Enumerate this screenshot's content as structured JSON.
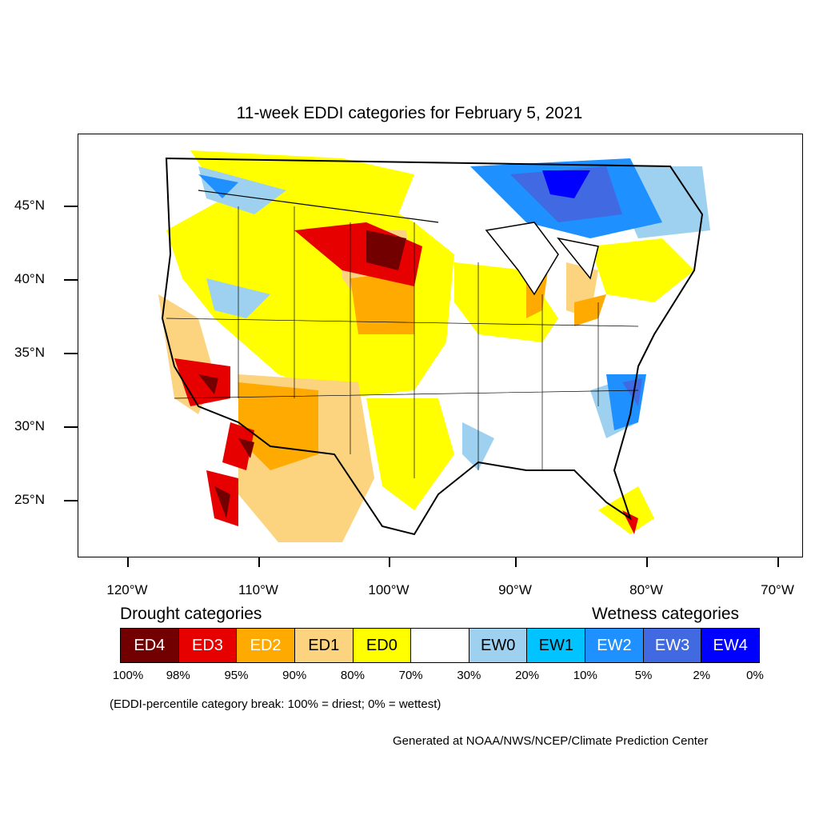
{
  "title": "11-week EDDI categories for February 5, 2021",
  "lat_labels": [
    "45°N",
    "40°N",
    "35°N",
    "30°N",
    "25°N"
  ],
  "lon_labels": [
    "120°W",
    "110°W",
    "100°W",
    "90°W",
    "80°W",
    "70°W"
  ],
  "legend": {
    "drought_heading": "Drought categories",
    "wetness_heading": "Wetness categories",
    "categories": [
      {
        "label": "ED4",
        "color": "#730000",
        "text_color": "#ffffff"
      },
      {
        "label": "ED3",
        "color": "#e60000",
        "text_color": "#ffffff"
      },
      {
        "label": "ED2",
        "color": "#ffaa00",
        "text_color": "#ffffff"
      },
      {
        "label": "ED1",
        "color": "#fcd37f",
        "text_color": "#000000"
      },
      {
        "label": "ED0",
        "color": "#ffff00",
        "text_color": "#000000"
      },
      {
        "label": "",
        "color": "#ffffff",
        "text_color": "#000000"
      },
      {
        "label": "EW0",
        "color": "#9dd1ef",
        "text_color": "#000000"
      },
      {
        "label": "EW1",
        "color": "#00c3ff",
        "text_color": "#000000"
      },
      {
        "label": "EW2",
        "color": "#1e90ff",
        "text_color": "#ffffff"
      },
      {
        "label": "EW3",
        "color": "#4169e1",
        "text_color": "#ffffff"
      },
      {
        "label": "EW4",
        "color": "#0000ff",
        "text_color": "#ffffff"
      }
    ],
    "breaks": [
      "100%",
      "98%",
      "95%",
      "90%",
      "80%",
      "70%",
      "30%",
      "20%",
      "10%",
      "5%",
      "2%",
      "0%"
    ]
  },
  "note": "(EDDI-percentile category break: 100% = driest; 0% = wettest)",
  "credit": "Generated at NOAA/NWS/NCEP/Climate Prediction Center"
}
